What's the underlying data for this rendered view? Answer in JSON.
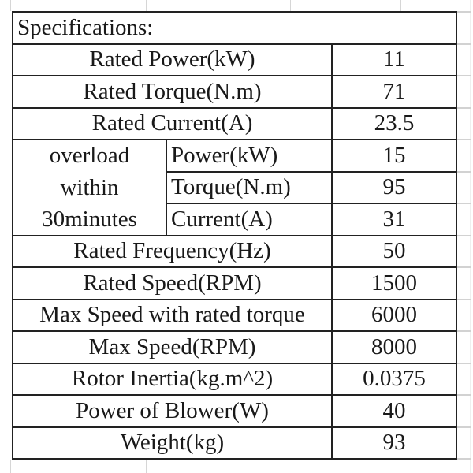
{
  "table": {
    "header": "Specifications:",
    "rows_top": [
      {
        "label": "Rated Power(kW)",
        "value": "11"
      },
      {
        "label": "Rated Torque(N.m)",
        "value": "71"
      },
      {
        "label": "Rated Current(A)",
        "value": "23.5"
      }
    ],
    "overload": {
      "lines": [
        "overload",
        "within",
        "30minutes"
      ],
      "rows": [
        {
          "label": "Power(kW)",
          "value": "15"
        },
        {
          "label": "Torque(N.m)",
          "value": "95"
        },
        {
          "label": "Current(A)",
          "value": "31"
        }
      ]
    },
    "rows_bottom": [
      {
        "label": "Rated Frequency(Hz)",
        "value": "50"
      },
      {
        "label": "Rated Speed(RPM)",
        "value": "1500"
      },
      {
        "label": "Max Speed with rated torque",
        "value": "6000"
      },
      {
        "label": "Max Speed(RPM)",
        "value": "8000"
      },
      {
        "label": "Rotor Inertia(kg.m^2)",
        "value": "0.0375"
      },
      {
        "label": "Power of Blower(W)",
        "value": "40"
      },
      {
        "label": "Weight(kg)",
        "value": "93"
      }
    ],
    "colors": {
      "border": "#222222",
      "text": "#191919",
      "background": "#ffffff",
      "faint_grid": "#d6d6d6"
    }
  }
}
